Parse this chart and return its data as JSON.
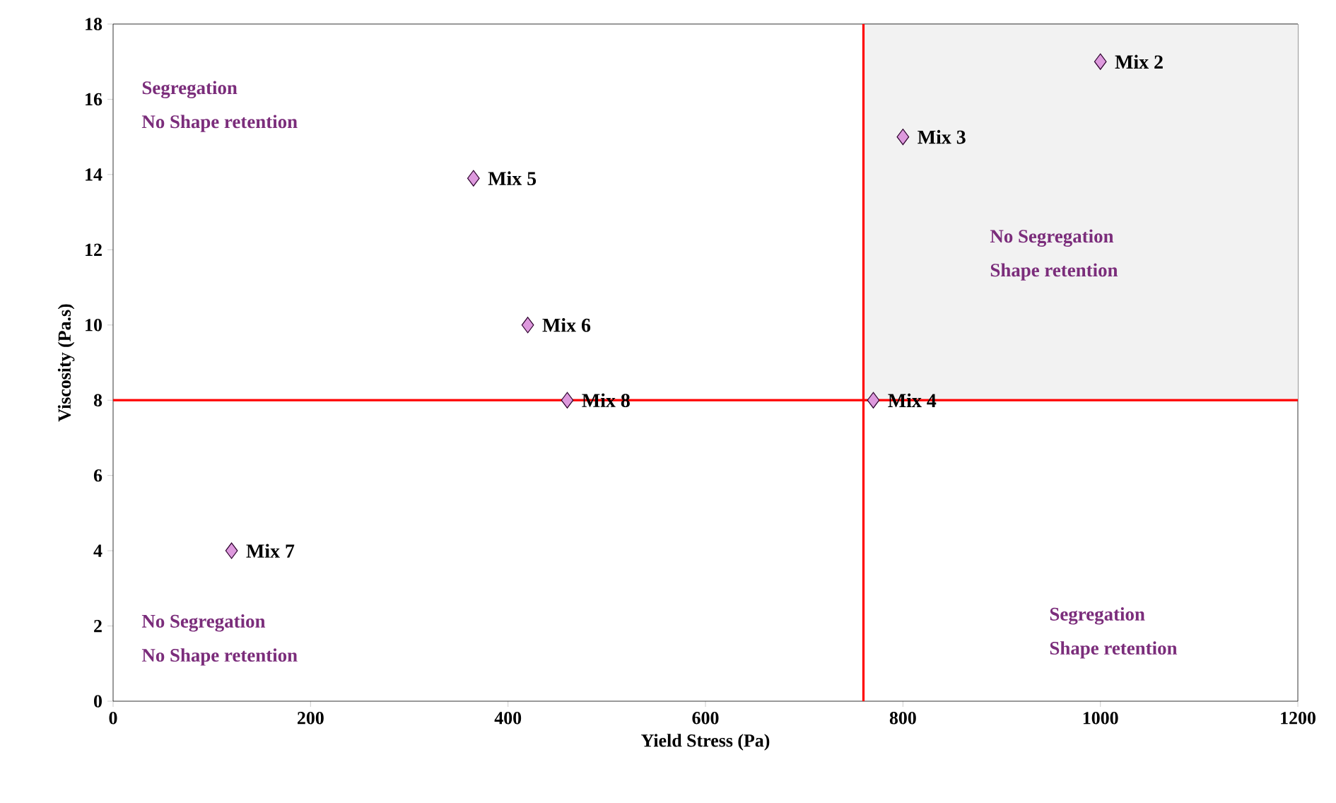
{
  "chart_data": {
    "type": "scatter",
    "xlabel": "Yield Stress (Pa)",
    "ylabel": "Viscosity (Pa.s)",
    "xlim": [
      0,
      1200
    ],
    "ylim": [
      0,
      18
    ],
    "xticks": [
      0,
      200,
      400,
      600,
      800,
      1000,
      1200
    ],
    "yticks": [
      0,
      2,
      4,
      6,
      8,
      10,
      12,
      14,
      16,
      18
    ],
    "grid": false,
    "series": [
      {
        "type": "line",
        "color": "#808080",
        "x": [
          760,
          1200
        ],
        "values": [
          18,
          18
        ],
        "lower": [
          8,
          8
        ],
        "upper": [
          18,
          18
        ]
      },
      {
        "color": "#dd99dd",
        "marker": "diamond",
        "x": [
          1000,
          800,
          770,
          365,
          420,
          120,
          460
        ],
        "values": [
          17,
          15,
          8,
          13.9,
          10,
          4,
          8
        ],
        "value_labels": [
          "Mix 2",
          "Mix 3",
          "Mix 4",
          "Mix 5",
          "Mix 6",
          "Mix 7",
          "Mix 8"
        ]
      }
    ],
    "ref_lines": [
      {
        "axis": "x",
        "value": 760,
        "color": "#ff0000"
      },
      {
        "axis": "y",
        "value": 8,
        "color": "#ff0000"
      }
    ],
    "annotations": [
      "Segregation",
      "No Shape retention",
      "No Segregation",
      "Shape retention",
      "No Segregation",
      "No Shape retention",
      "Segregation",
      "Shape retention"
    ]
  }
}
